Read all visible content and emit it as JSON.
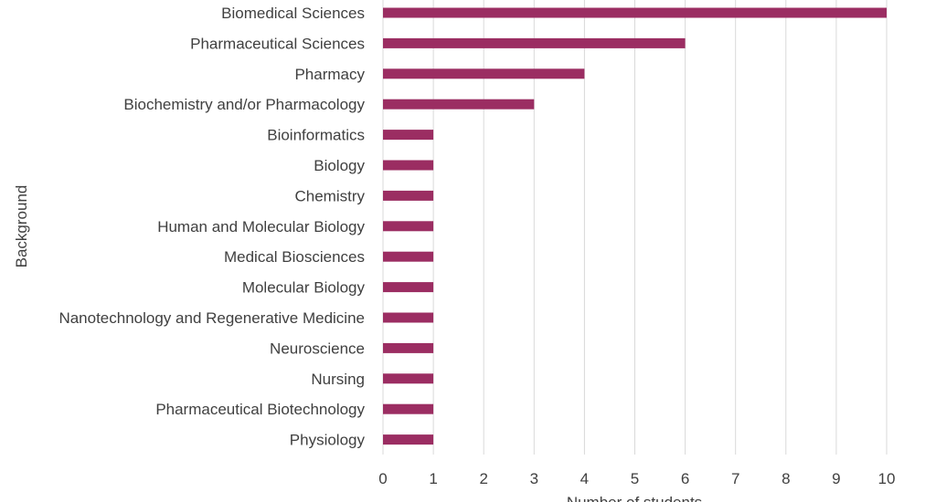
{
  "chart_data": {
    "type": "bar",
    "orientation": "horizontal",
    "categories": [
      "Biomedical Sciences",
      "Pharmaceutical Sciences",
      "Pharmacy",
      "Biochemistry and/or Pharmacology",
      "Bioinformatics",
      "Biology",
      "Chemistry",
      "Human and Molecular Biology",
      "Medical Biosciences",
      "Molecular Biology",
      "Nanotechnology and Regenerative Medicine",
      "Neuroscience",
      "Nursing",
      "Pharmaceutical Biotechnology",
      "Physiology"
    ],
    "values": [
      10,
      6,
      4,
      3,
      1,
      1,
      1,
      1,
      1,
      1,
      1,
      1,
      1,
      1,
      1
    ],
    "xlabel": "Number of students",
    "ylabel": "Background",
    "xlim": [
      0,
      10
    ],
    "xticks": [
      "0",
      "1",
      "2",
      "3",
      "4",
      "5",
      "6",
      "7",
      "8",
      "9",
      "10"
    ],
    "grid": "vertical",
    "legend": "none",
    "bar_color": "#9b2d62"
  }
}
